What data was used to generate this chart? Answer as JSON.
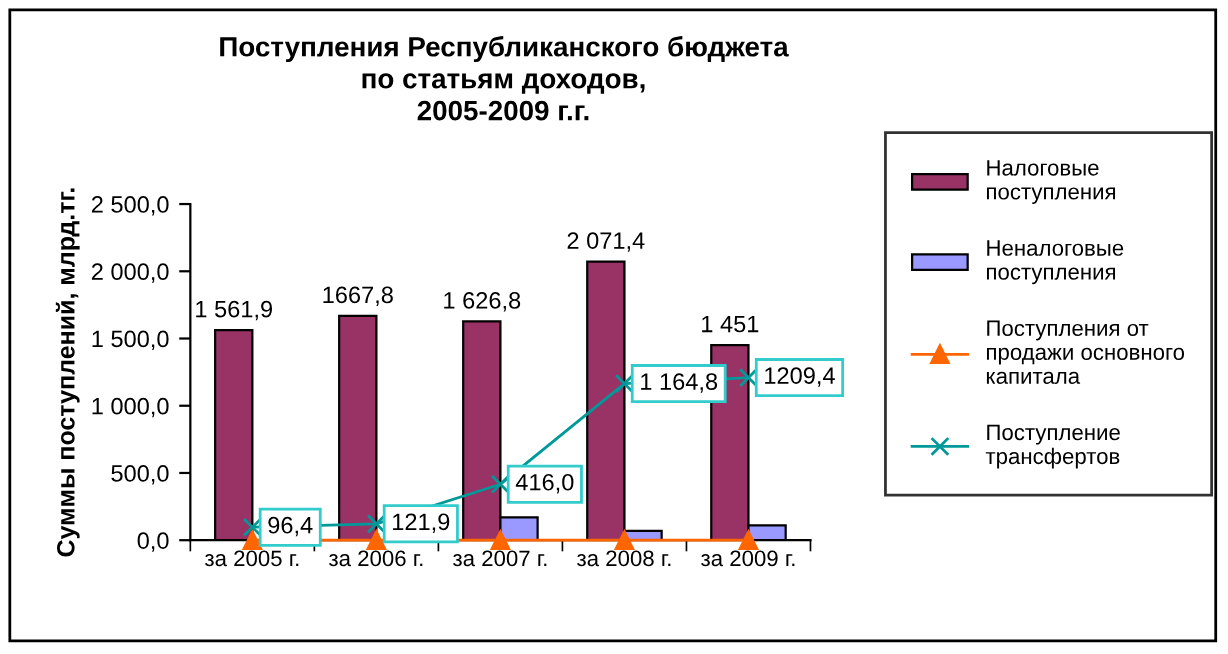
{
  "chart_data": {
    "type": "bar",
    "title": "Поступления Республиканского бюджета\nпо статьям доходов,\n2005-2009 г.г.",
    "ylabel": "Суммы поступлений, млрд.тг.",
    "categories": [
      "за 2005 г.",
      "за 2006 г.",
      "за 2007 г.",
      "за 2008 г.",
      "за 2009 г."
    ],
    "series": [
      {
        "name": "Налоговые поступления",
        "color": "#993366",
        "values": [
          1561.9,
          1667.8,
          1626.8,
          2071.4,
          1451
        ],
        "value_labels": [
          "1 561,9",
          "1667,8",
          "1 626,8",
          "2 071,4",
          "1 451"
        ]
      },
      {
        "name": "Неналоговые поступления",
        "color": "#9999ff",
        "values": [
          null,
          null,
          170,
          70,
          110
        ]
      },
      {
        "name": "Поступления от продажи основного капитала",
        "type": "line",
        "marker": "triangle",
        "color": "#ff6600",
        "values": [
          0,
          0,
          0,
          0,
          0
        ]
      },
      {
        "name": "Поступление трансфертов",
        "type": "line",
        "marker": "cross",
        "color": "#009999",
        "values": [
          96.4,
          121.9,
          416.0,
          1164.8,
          1209.4
        ],
        "value_labels": [
          "96,4",
          "121,9",
          "416,0",
          "1 164,8",
          "1209,4"
        ]
      }
    ],
    "ylim": [
      0,
      2500
    ],
    "yticks": [
      {
        "value": 0,
        "label": "0,0"
      },
      {
        "value": 500,
        "label": "500,0"
      },
      {
        "value": 1000,
        "label": "1 000,0"
      },
      {
        "value": 1500,
        "label": "1 500,0"
      },
      {
        "value": 2000,
        "label": "2 000,0"
      },
      {
        "value": 2500,
        "label": "2 500,0"
      }
    ],
    "grid": false,
    "legend": "right"
  }
}
